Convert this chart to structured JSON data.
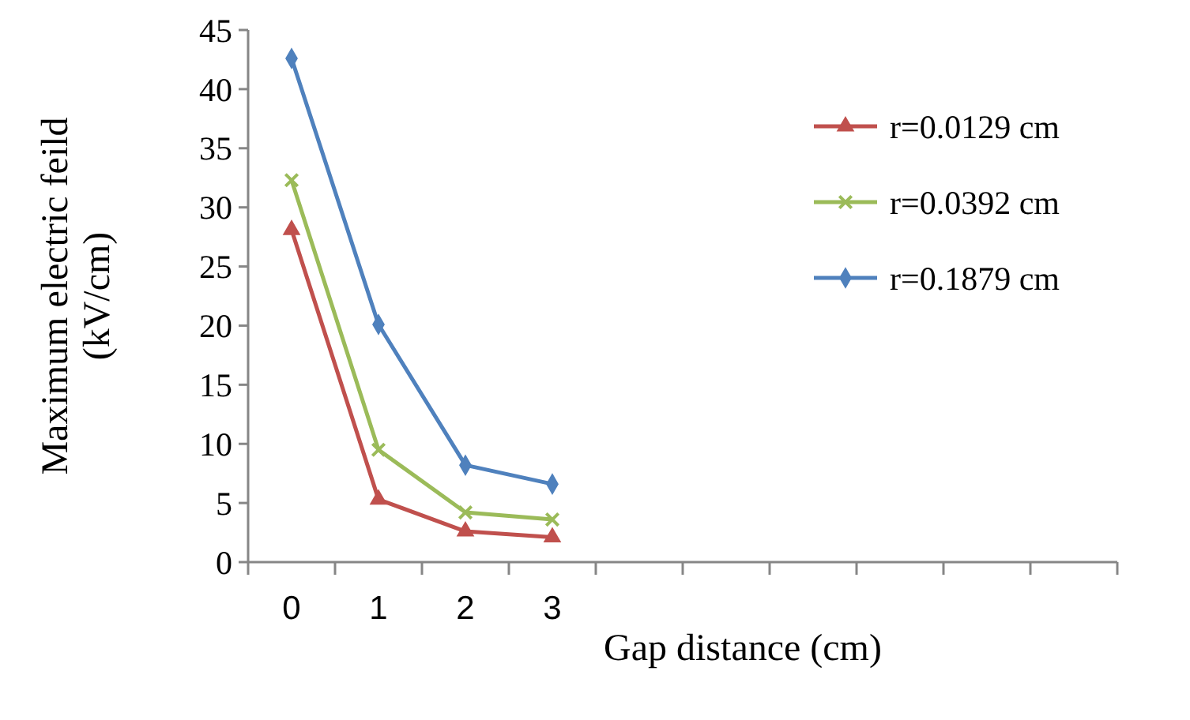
{
  "chart_data": {
    "type": "line",
    "xlabel": "Gap distance (cm)",
    "ylabel": "Maximum electric feild (kV/cm)",
    "categories": [
      "0",
      "1",
      "2",
      "3",
      null,
      null,
      null,
      null,
      null,
      null
    ],
    "ylim": [
      0,
      45
    ],
    "yticks": [
      0,
      5,
      10,
      15,
      20,
      25,
      30,
      35,
      40,
      45
    ],
    "grid": false,
    "legend": "right",
    "series": [
      {
        "name": "r=0.0129 cm",
        "color": "#c0504d",
        "marker": "triangle",
        "values": [
          28.1,
          5.3,
          2.6,
          2.1,
          null,
          null,
          null,
          null,
          null,
          null
        ]
      },
      {
        "name": "r=0.0392 cm",
        "color": "#9bbb59",
        "marker": "cross",
        "values": [
          32.3,
          9.5,
          4.2,
          3.6,
          null,
          null,
          null,
          null,
          null,
          null
        ]
      },
      {
        "name": "r=0.1879 cm",
        "color": "#4f81bd",
        "marker": "diamond",
        "values": [
          42.6,
          20.1,
          8.2,
          6.6,
          null,
          null,
          null,
          null,
          null,
          null
        ]
      }
    ]
  }
}
